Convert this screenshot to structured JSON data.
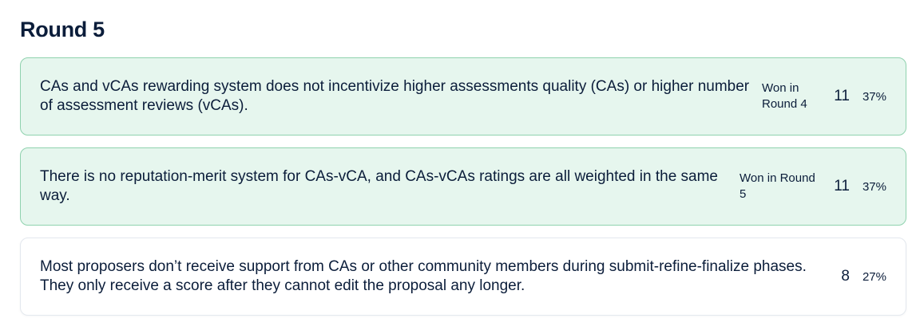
{
  "round": {
    "title": "Round 5"
  },
  "options": [
    {
      "text": "CAs and vCAs rewarding system does not incentivize higher assessments quality (CAs) or higher number of assessment reviews (vCAs).",
      "won_label": "Won in Round 4",
      "votes": "11",
      "percent": "37%",
      "winner": true
    },
    {
      "text": "There is no reputation-merit system for CAs-vCA, and CAs-vCAs ratings are all weighted in the same way.",
      "won_label": "Won in Round 5",
      "votes": "11",
      "percent": "37%",
      "winner": true
    },
    {
      "text": "Most proposers don’t receive support from CAs or other community members during submit-refine-finalize phases. They only receive a score after they cannot edit the proposal any longer.",
      "won_label": "",
      "votes": "8",
      "percent": "27%",
      "winner": false
    }
  ],
  "colors": {
    "winner_bg": "#e6f6ee",
    "winner_border": "#8fd2ae",
    "text": "#0b1d3a"
  }
}
